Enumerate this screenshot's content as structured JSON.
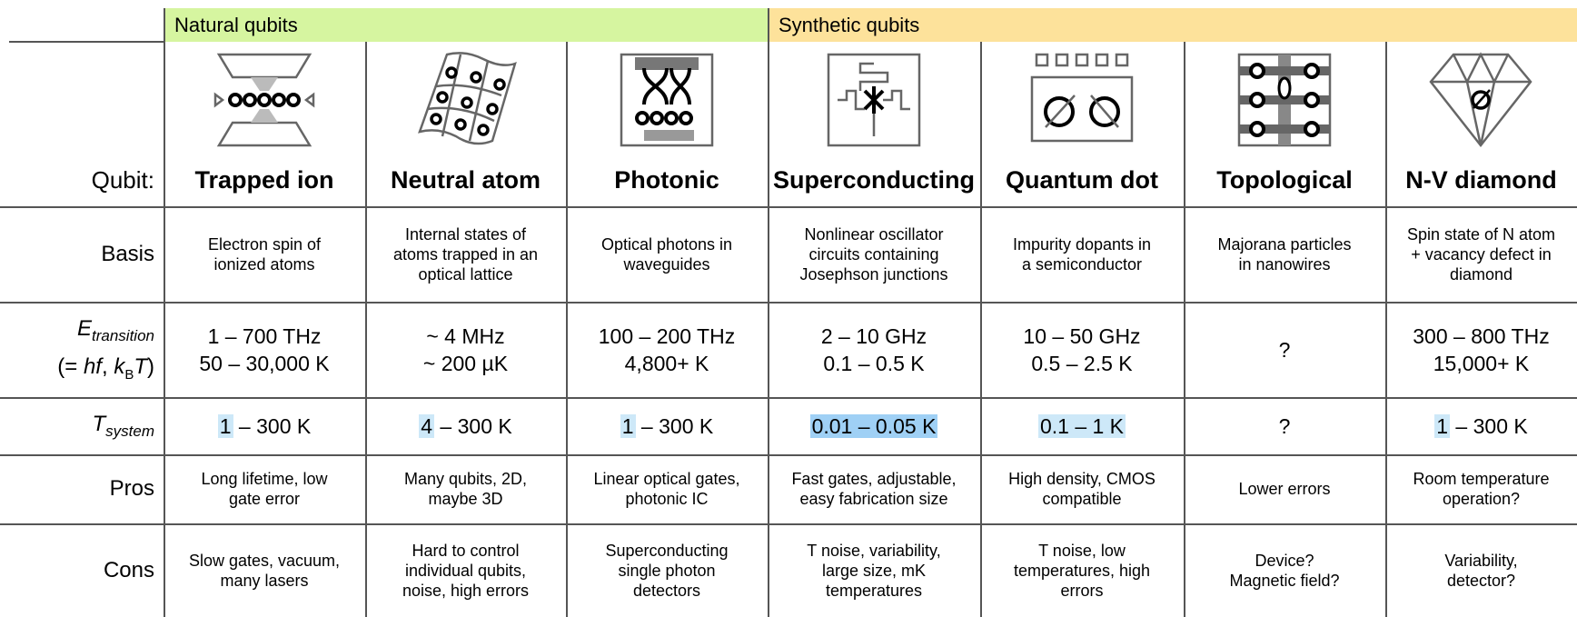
{
  "groups": [
    "Natural qubits",
    "Synthetic qubits"
  ],
  "qubit_label": "Qubit:",
  "qubits": [
    "Trapped ion",
    "Neutral atom",
    "Photonic",
    "Superconducting",
    "Quantum dot",
    "Topological",
    "N-V diamond"
  ],
  "basis": {
    "label": "Basis",
    "cells": [
      [
        "Electron spin of",
        "ionized atoms"
      ],
      [
        "Internal states of",
        "atoms trapped in an",
        "optical lattice"
      ],
      [
        "Optical photons in",
        "waveguides"
      ],
      [
        "Nonlinear oscillator",
        "circuits containing",
        "Josephson junctions"
      ],
      [
        "Impurity dopants in",
        "a semiconductor"
      ],
      [
        "Majorana particles",
        "in nanowires"
      ],
      [
        "Spin state of N atom",
        "+ vacancy defect in",
        "diamond"
      ]
    ]
  },
  "energy": {
    "label": [
      "E",
      "transition"
    ],
    "label_line2": [
      "(= ",
      "hf",
      ", ",
      "k",
      "B",
      "T",
      ")"
    ],
    "cells": [
      [
        "1 – 700 THz",
        "50 – 30,000 K"
      ],
      [
        "~ 4 MHz",
        "~ 200 µK"
      ],
      [
        "100 – 200 THz",
        "4,800+ K"
      ],
      [
        "2 – 10 GHz",
        "0.1 – 0.5 K"
      ],
      [
        "10 – 50 GHz",
        "0.5 – 2.5 K"
      ],
      [
        "?"
      ],
      [
        "300 – 800 THz",
        "15,000+ K"
      ]
    ]
  },
  "temperature": {
    "label": [
      "T",
      "system"
    ],
    "cells": [
      {
        "highlight": "1",
        "rest": " – 300 K"
      },
      {
        "highlight": "4",
        "rest": " – 300 K"
      },
      {
        "highlight": "1",
        "rest": " – 300 K"
      },
      {
        "highlight": "0.01 – 0.05 K"
      },
      {
        "highlight": "0.1 – 1 K"
      },
      {
        "rest": "?"
      },
      {
        "highlight": "1",
        "rest": " – 300 K"
      }
    ]
  },
  "pros": {
    "label": "Pros",
    "cells": [
      [
        "Long lifetime, low",
        "gate error"
      ],
      [
        "Many qubits, 2D,",
        "maybe 3D"
      ],
      [
        "Linear optical gates,",
        "photonic IC"
      ],
      [
        "Fast gates, adjustable,",
        "easy fabrication size"
      ],
      [
        "High density, CMOS",
        "compatible"
      ],
      [
        "Lower errors"
      ],
      [
        "Room temperature",
        "operation?"
      ]
    ]
  },
  "cons": {
    "label": "Cons",
    "cells": [
      [
        "Slow gates, vacuum,",
        "many lasers"
      ],
      [
        "Hard to control",
        "individual qubits,",
        "noise, high errors"
      ],
      [
        "Superconducting",
        "single photon",
        "detectors"
      ],
      [
        "T noise, variability,",
        "large size, mK",
        "temperatures"
      ],
      [
        "T noise, low",
        "temperatures, high",
        "errors"
      ],
      [
        "Device?",
        "Magnetic field?"
      ],
      [
        "Variability,",
        "detector?"
      ]
    ]
  }
}
